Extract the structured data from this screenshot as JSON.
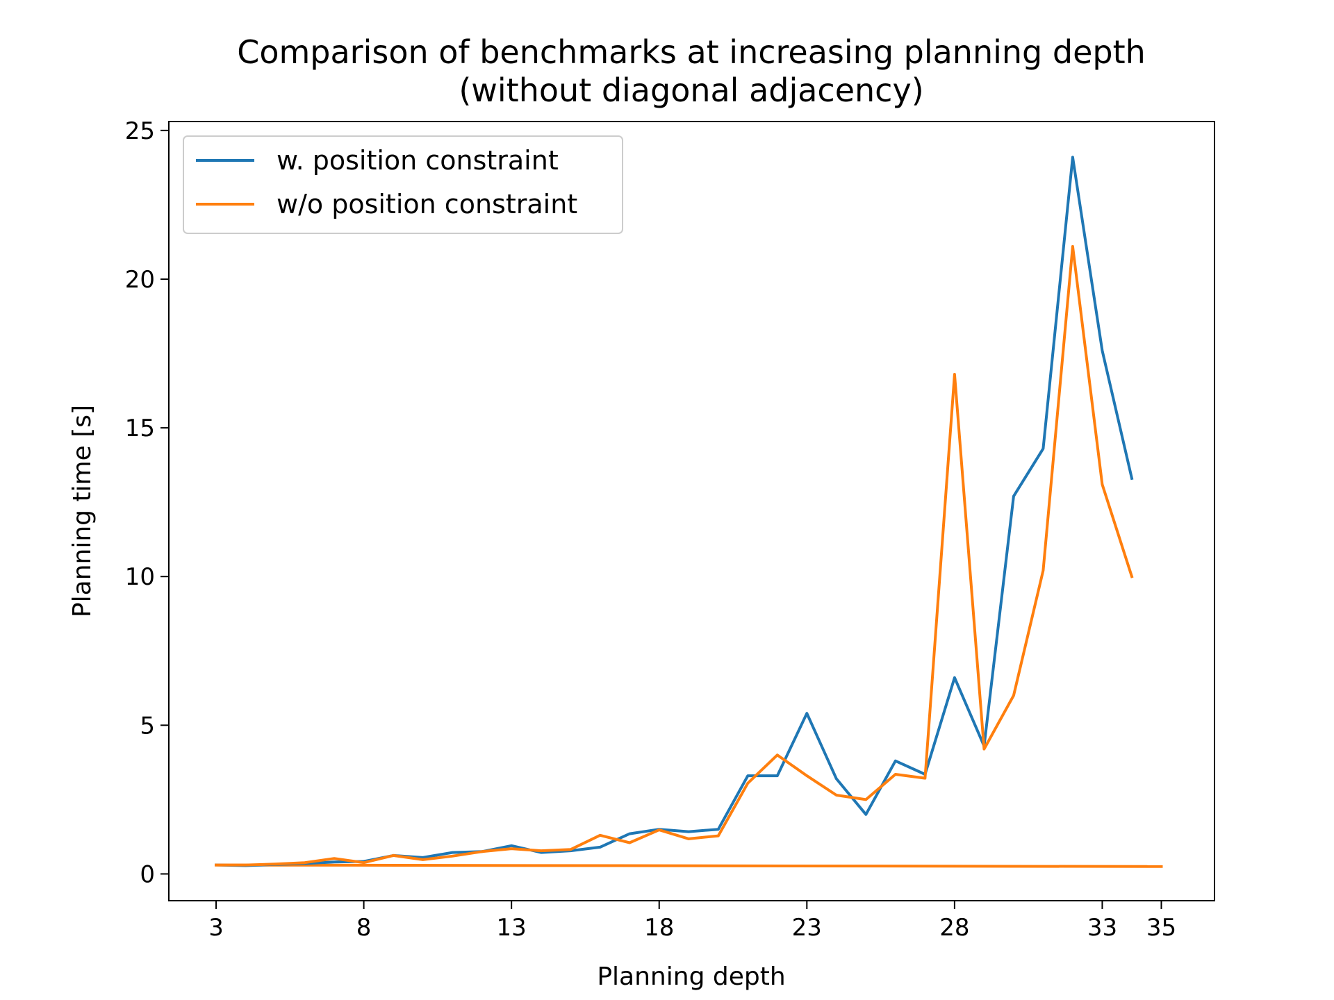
{
  "chart_data": {
    "type": "line",
    "title": "Comparison of benchmarks at increasing planning depth",
    "subtitle": "(without diagonal adjacency)",
    "xlabel": "Planning depth",
    "ylabel": "Planning time [s]",
    "xlim": [
      1.4,
      36.8
    ],
    "ylim": [
      -0.9,
      25.3
    ],
    "xticks": [
      3,
      8,
      13,
      18,
      23,
      28,
      33,
      35
    ],
    "yticks": [
      0,
      5,
      10,
      15,
      20,
      25
    ],
    "grid": false,
    "legend_position": "top-left",
    "x": [
      3,
      4,
      5,
      6,
      7,
      8,
      9,
      10,
      11,
      12,
      13,
      14,
      15,
      16,
      17,
      18,
      19,
      20,
      21,
      22,
      23,
      24,
      25,
      26,
      27,
      28,
      29,
      30,
      31,
      32,
      33,
      34
    ],
    "series": [
      {
        "name": "w. position constraint",
        "color": "#1f77b4",
        "values": [
          0.3,
          0.28,
          0.32,
          0.35,
          0.4,
          0.42,
          0.62,
          0.55,
          0.72,
          0.75,
          0.95,
          0.72,
          0.78,
          0.9,
          1.35,
          1.5,
          1.42,
          1.5,
          3.3,
          3.3,
          5.4,
          3.2,
          2.0,
          3.8,
          3.35,
          6.6,
          4.3,
          12.7,
          14.3,
          24.1,
          17.6,
          13.3
        ]
      },
      {
        "name": "w/o position constraint",
        "color": "#ff7f0e",
        "values": [
          0.3,
          0.3,
          0.33,
          0.38,
          0.52,
          0.38,
          0.62,
          0.48,
          0.6,
          0.75,
          0.85,
          0.78,
          0.82,
          1.3,
          1.05,
          1.48,
          1.18,
          1.28,
          3.05,
          4.0,
          3.3,
          2.65,
          2.5,
          3.35,
          3.22,
          16.8,
          4.2,
          6.0,
          10.2,
          21.1,
          13.1,
          10.0
        ]
      }
    ],
    "extra_line": {
      "color": "#ff7f0e",
      "x": [
        3,
        35
      ],
      "y": [
        0.3,
        0.25
      ]
    }
  }
}
